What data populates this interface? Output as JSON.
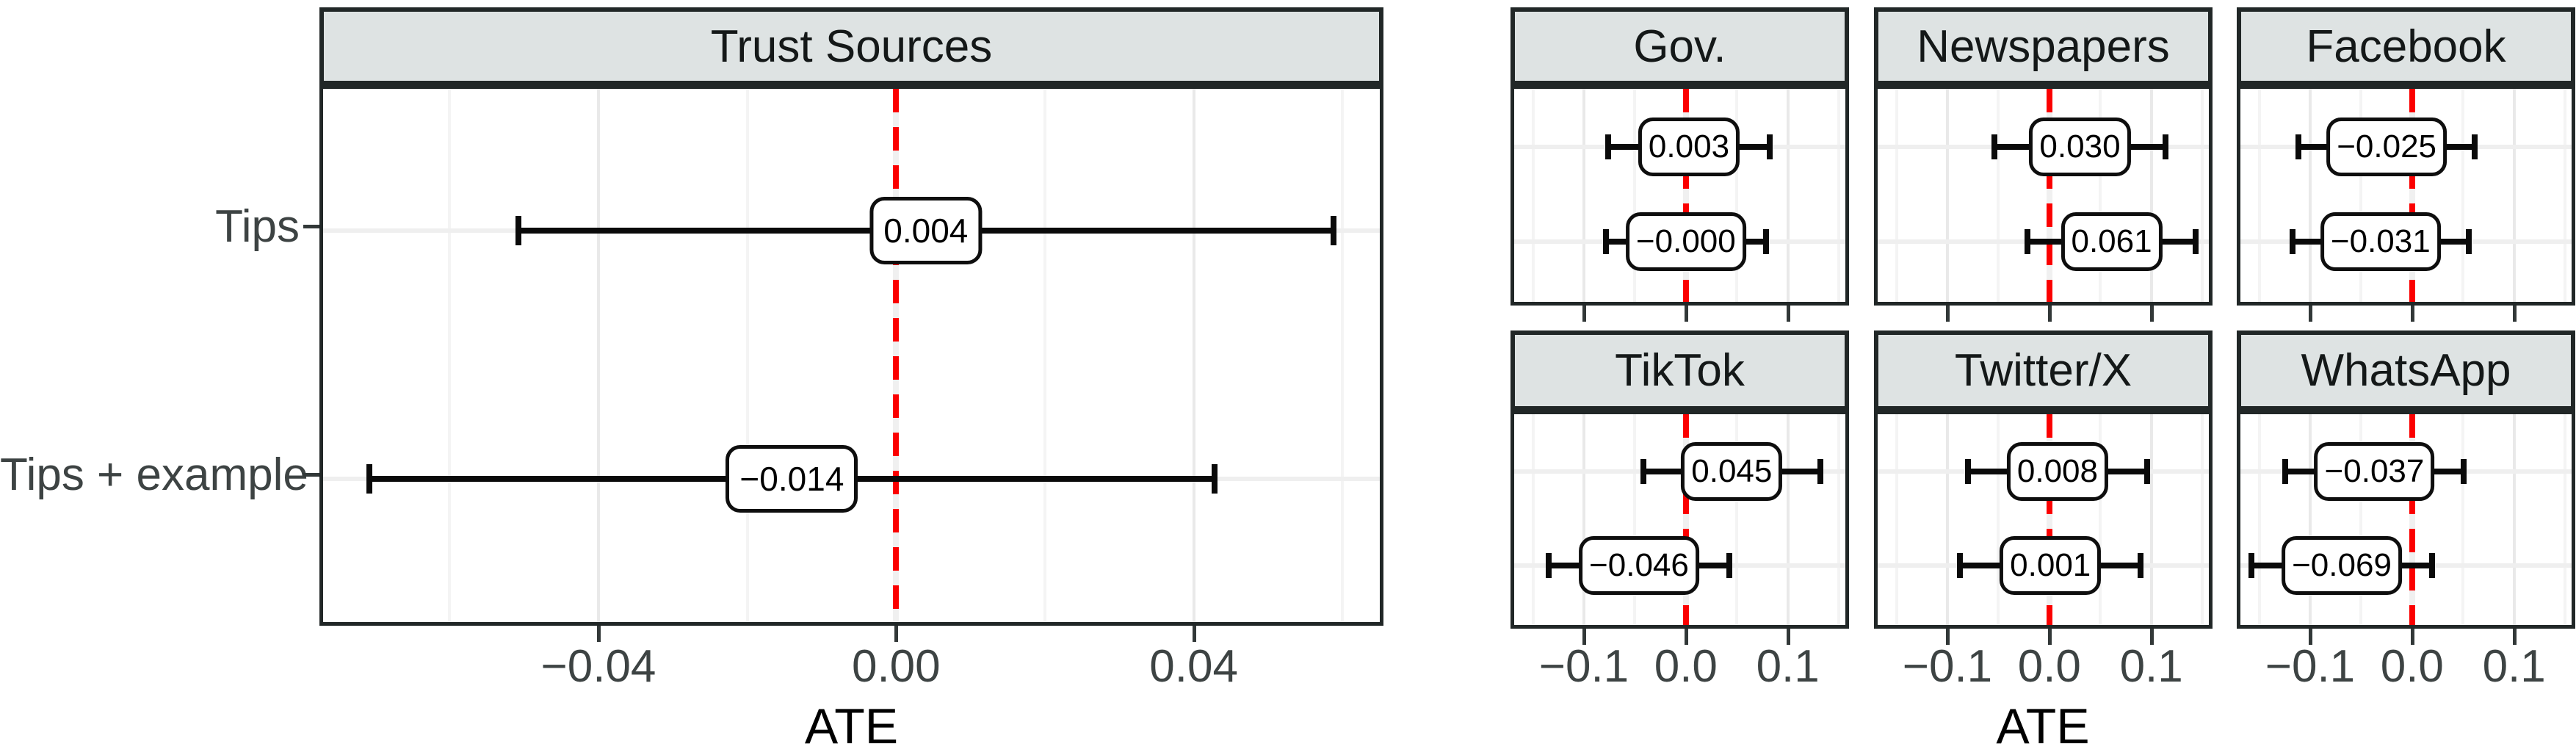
{
  "chart_data": {
    "type": "forest",
    "xlabel": "ATE",
    "colors": {
      "zero_line": "#FB0000",
      "strip_fill": "#DEE3E3",
      "border": "#212727",
      "bar": "#0A0A0A",
      "grid_major": "#E9E9E9",
      "grid_minor": "#F4F4F4",
      "grid_row": "#EFEFEF",
      "tick_text": "#3D4343"
    },
    "left_panel": {
      "title": "Trust Sources",
      "xlim": [
        -0.0775,
        0.0655
      ],
      "x_ticks": [
        {
          "label": "−0.04",
          "value": -0.04
        },
        {
          "label": "0.00",
          "value": 0.0
        },
        {
          "label": "0.04",
          "value": 0.04
        }
      ],
      "x_minor": [
        -0.06,
        -0.02,
        0.02,
        0.06
      ],
      "rows": [
        {
          "group": "Tips",
          "label": "0.004",
          "value": 0.004,
          "ci_low": -0.051,
          "ci_high": 0.059
        },
        {
          "group": "Tips + example",
          "label": "−0.014",
          "value": -0.014,
          "ci_low": -0.071,
          "ci_high": 0.043
        }
      ]
    },
    "facets": {
      "xlim": [
        -0.172,
        0.16
      ],
      "x_ticks": [
        {
          "label": "−0.1",
          "value": -0.1
        },
        {
          "label": "0.0",
          "value": 0.0
        },
        {
          "label": "0.1",
          "value": 0.1
        }
      ],
      "x_minor": [
        -0.15,
        -0.05,
        0.05,
        0.15
      ],
      "panels": [
        {
          "title": "Gov.",
          "rows": [
            {
              "group": "Tips",
              "label": "0.003",
              "value": 0.003,
              "ci_low": -0.078,
              "ci_high": 0.084
            },
            {
              "group": "Tips + example",
              "label": "−0.000",
              "value": -0.0,
              "ci_low": -0.08,
              "ci_high": 0.08
            }
          ]
        },
        {
          "title": "Newspapers",
          "rows": [
            {
              "group": "Tips",
              "label": "0.030",
              "value": 0.03,
              "ci_low": -0.055,
              "ci_high": 0.115
            },
            {
              "group": "Tips + example",
              "label": "0.061",
              "value": 0.061,
              "ci_low": -0.023,
              "ci_high": 0.145
            }
          ]
        },
        {
          "title": "Facebook",
          "rows": [
            {
              "group": "Tips",
              "label": "−0.025",
              "value": -0.025,
              "ci_low": -0.113,
              "ci_high": 0.063
            },
            {
              "group": "Tips + example",
              "label": "−0.031",
              "value": -0.031,
              "ci_low": -0.119,
              "ci_high": 0.057
            }
          ]
        },
        {
          "title": "TikTok",
          "rows": [
            {
              "group": "Tips",
              "label": "0.045",
              "value": 0.045,
              "ci_low": -0.043,
              "ci_high": 0.133
            },
            {
              "group": "Tips + example",
              "label": "−0.046",
              "value": -0.046,
              "ci_low": -0.136,
              "ci_high": 0.044
            }
          ]
        },
        {
          "title": "Twitter/X",
          "rows": [
            {
              "group": "Tips",
              "label": "0.008",
              "value": 0.008,
              "ci_low": -0.081,
              "ci_high": 0.097
            },
            {
              "group": "Tips + example",
              "label": "0.001",
              "value": 0.001,
              "ci_low": -0.089,
              "ci_high": 0.091
            }
          ]
        },
        {
          "title": "WhatsApp",
          "rows": [
            {
              "group": "Tips",
              "label": "−0.037",
              "value": -0.037,
              "ci_low": -0.126,
              "ci_high": 0.052
            },
            {
              "group": "Tips + example",
              "label": "−0.069",
              "value": -0.069,
              "ci_low": -0.159,
              "ci_high": 0.021
            }
          ]
        }
      ]
    }
  }
}
